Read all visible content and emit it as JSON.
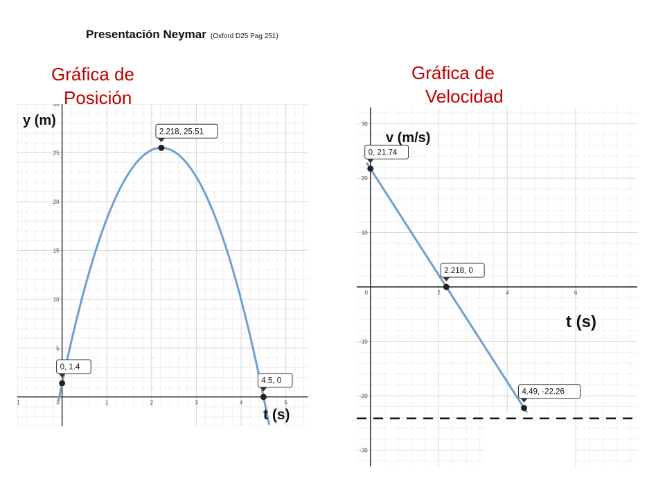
{
  "header": {
    "title": "Presentación Neymar",
    "reference": "(Oxford D25 Pag 251)"
  },
  "colors": {
    "title_red": "#c00000",
    "curve": "#6f9fd0",
    "grid": "#d9d9d9",
    "axis": "#222222"
  },
  "chart_data": [
    {
      "type": "line",
      "title_line1": "Gráfica de",
      "title_line2": "Posición",
      "ylabel": "y (m)",
      "xlabel": "t (s)",
      "xlim": [
        -1,
        5.5
      ],
      "ylim": [
        -3,
        30
      ],
      "x_ticks": [
        "-1",
        "0",
        "1",
        "2",
        "3",
        "4",
        "5"
      ],
      "y_ticks": [
        "5",
        "10",
        "15",
        "20",
        "25",
        "30"
      ],
      "grid": true,
      "curve": {
        "equation": "y = 1.4 + 21.74 t - 4.9 t^2",
        "t_range": [
          -0.08,
          4.62
        ]
      },
      "points": [
        {
          "x": 0,
          "y": 1.4,
          "label": "0, 1.4"
        },
        {
          "x": 2.218,
          "y": 25.51,
          "label": "2.218, 25.51"
        },
        {
          "x": 4.5,
          "y": 0,
          "label": "4.5, 0"
        }
      ]
    },
    {
      "type": "line",
      "title_line1": "Gráfica de",
      "title_line2": "Velocidad",
      "ylabel": "v (m/s)",
      "xlabel": "t (s)",
      "xlim": [
        -0.4,
        7.8
      ],
      "ylim": [
        -33,
        33
      ],
      "x_ticks": [
        "0",
        "2",
        "4",
        "6"
      ],
      "y_ticks": [
        "30",
        "20",
        "10",
        "-10",
        "-20",
        "-30"
      ],
      "grid": true,
      "curve": {
        "equation": "v = 21.74 - 9.8 t",
        "t_range": [
          -0.1,
          4.6
        ]
      },
      "points": [
        {
          "x": 0,
          "y": 21.74,
          "label": "0, 21.74"
        },
        {
          "x": 2.218,
          "y": 0,
          "label": "2.218, 0"
        },
        {
          "x": 4.49,
          "y": -22.26,
          "label": "4.49, -22.26"
        }
      ],
      "reference_line": {
        "y": -22.26,
        "style": "dashed"
      }
    }
  ]
}
